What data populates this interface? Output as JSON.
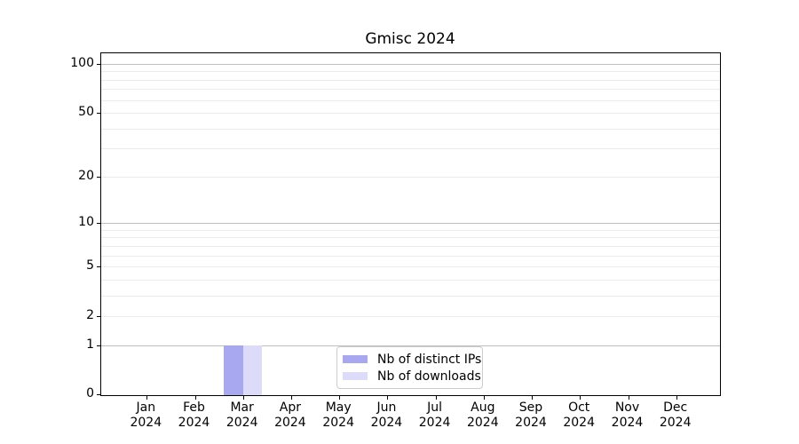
{
  "chart_data": {
    "type": "bar",
    "title": "Gmisc 2024",
    "categories": [
      "Jan\n2024",
      "Feb\n2024",
      "Mar\n2024",
      "Apr\n2024",
      "May\n2024",
      "Jun\n2024",
      "Jul\n2024",
      "Aug\n2024",
      "Sep\n2024",
      "Oct\n2024",
      "Nov\n2024",
      "Dec\n2024"
    ],
    "series": [
      {
        "name": "Nb of distinct IPs",
        "color": "#a8a8f0",
        "values": [
          0,
          0,
          1,
          0,
          0,
          0,
          0,
          0,
          0,
          0,
          0,
          0
        ]
      },
      {
        "name": "Nb of downloads",
        "color": "#dcdcfa",
        "values": [
          0,
          0,
          1,
          0,
          0,
          0,
          0,
          0,
          0,
          0,
          0,
          0
        ]
      }
    ],
    "yscale": "log1p",
    "ylim": [
      0,
      116
    ],
    "yticks": [
      0,
      1,
      2,
      5,
      10,
      20,
      50,
      100
    ],
    "ytick_labels": [
      "0",
      "1",
      "2",
      "5",
      "10",
      "20",
      "50",
      "100"
    ],
    "grid": {
      "major_values": [
        1,
        10,
        100
      ],
      "minor_values": [
        2,
        3,
        4,
        5,
        6,
        7,
        8,
        9,
        20,
        30,
        40,
        50,
        60,
        70,
        80,
        90
      ]
    },
    "legend_position": "lower center",
    "colors": {
      "major_grid": "#bfbfbf",
      "minor_grid": "#ebebeb",
      "spine": "#000000",
      "text": "#000000"
    }
  }
}
